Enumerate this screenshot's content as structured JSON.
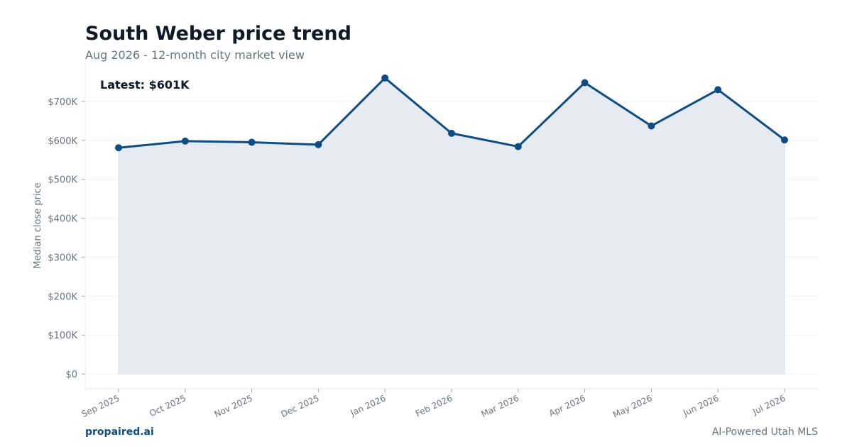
{
  "header": {
    "title": "South Weber price trend",
    "subtitle": "Aug 2026 - 12-month city market view"
  },
  "footer": {
    "brand": "propaired.ai",
    "tagline": "AI-Powered Utah MLS"
  },
  "colors": {
    "line": "#0f4c81",
    "fill": "#e6ebf3",
    "axis_text": "#6b7280",
    "grid": "#f1f2f4"
  },
  "chart_data": {
    "type": "area",
    "ylabel": "Median close price",
    "xlabel": "",
    "annotation": "Latest: $601K",
    "categories": [
      "Sep 2025",
      "Oct 2025",
      "Nov 2025",
      "Dec 2025",
      "Jan 2026",
      "Feb 2026",
      "Mar 2026",
      "Apr 2026",
      "May 2026",
      "Jun 2026",
      "Jul 2026"
    ],
    "values": [
      581000,
      598000,
      595000,
      589000,
      760000,
      618000,
      584000,
      748000,
      637000,
      730000,
      601000
    ],
    "ylim": [
      -38000,
      800000
    ],
    "yticks": [
      0,
      100000,
      200000,
      300000,
      400000,
      500000,
      600000,
      700000
    ],
    "ytick_labels": [
      "$0",
      "$100K",
      "$200K",
      "$300K",
      "$400K",
      "$500K",
      "$600K",
      "$700K"
    ],
    "grid": true
  }
}
